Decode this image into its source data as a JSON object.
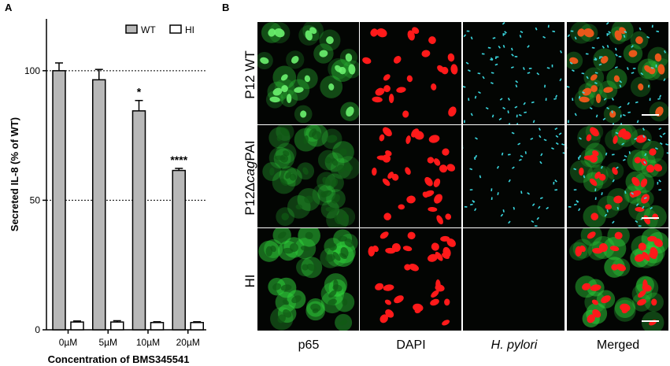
{
  "panel_a": {
    "letter": "A",
    "chart_data": {
      "type": "bar",
      "categories": [
        "0µM",
        "5µM",
        "10µM",
        "20µM"
      ],
      "series": [
        {
          "name": "WT",
          "values": [
            100,
            96.5,
            84.5,
            61.5
          ],
          "errors": [
            3,
            4,
            4,
            0.8
          ],
          "color": "#b8b8b8"
        },
        {
          "name": "HI",
          "values": [
            3,
            3,
            2.8,
            2.8
          ],
          "errors": [
            0.4,
            0.5,
            0.3,
            0.3
          ],
          "color": "#ffffff"
        }
      ],
      "annotations": [
        "",
        "",
        "*",
        "****"
      ],
      "xlabel": "Concentration of BMS345541",
      "ylabel": "Secreted IL-8 (% of WT)",
      "ylim": [
        0,
        120
      ],
      "yticks": [
        "0",
        "50",
        "100"
      ],
      "reference_lines": [
        50,
        100
      ],
      "legend_position": "top-right"
    }
  },
  "panel_b": {
    "letter": "B",
    "rows": [
      "P12 WT",
      "P12ΔcagPAI",
      "HI"
    ],
    "row_parts": {
      "prefix": "P12Δ",
      "italic": "cag",
      "suffix": "PAI"
    },
    "columns": [
      "p65",
      "DAPI",
      "H. pylori",
      "Merged"
    ],
    "colors": {
      "p65": "#2fd13a",
      "dapi": "#ff1a1a",
      "h_pylori": "#3ad8e0",
      "merged_nucleus": "#e8581a"
    }
  }
}
